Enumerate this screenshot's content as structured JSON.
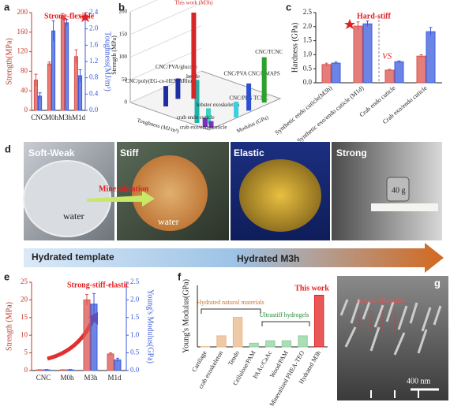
{
  "chart_data": [
    {
      "panel": "a",
      "type": "bar",
      "annotation": "Strong-flexible",
      "y_label": "Strength(MPa)",
      "y2_label": "Toughness(MJ/m³)",
      "categories": [
        "CNC",
        "M0h",
        "M3h",
        "M1d"
      ],
      "ylim": [
        0,
        200
      ],
      "yticks": [
        0,
        40,
        80,
        120,
        160,
        200
      ],
      "y2lim": [
        0,
        2.4
      ],
      "y2ticks": [
        {
          "value": 0,
          "label": "0.0"
        },
        {
          "value": 0.4,
          "label": "0.4"
        },
        {
          "value": 0.8,
          "label": "0.8"
        },
        {
          "value": 1.2,
          "label": "1.2"
        },
        {
          "value": 1.6,
          "label": "1.6"
        },
        {
          "value": 2.0,
          "label": "2.0"
        },
        {
          "value": 2.4,
          "label": "2.4"
        }
      ],
      "series": [
        {
          "color": "#d9534f",
          "values": [
            62,
            95,
            192,
            110
          ],
          "errors": [
            12,
            4,
            6,
            14
          ]
        },
        {
          "color": "#3b5bdb",
          "axis": "y2",
          "values": [
            0.35,
            1.95,
            2.15,
            0.85
          ],
          "errors": [
            0.08,
            0.25,
            0.08,
            0.15
          ]
        }
      ]
    },
    {
      "panel": "b",
      "type": "bar3d",
      "x_label": "Toughness (MJ/m³)",
      "y_label": "Modulus (GPa)",
      "z_label": "Strength (MPa)",
      "xlim": [
        0,
        10
      ],
      "ylim": [
        0,
        10
      ],
      "zlim": [
        0,
        200
      ],
      "zticks": [
        0,
        50,
        100,
        150,
        200
      ],
      "points": [
        {
          "name": "CNC/poly(EG-co-HEMARho)",
          "toughness": 6.85,
          "modulus": 1.5,
          "strength": 45,
          "color": "#1f2f9f"
        },
        {
          "name": "CNC/PVA/glucose",
          "toughness": 7.2,
          "modulus": 3.6,
          "strength": 45,
          "color": "#1f2f9f"
        },
        {
          "name": "beetle",
          "toughness": 2.0,
          "modulus": 0.5,
          "strength": 95,
          "color": "#20b2aa"
        },
        {
          "name": "lobster exoskeleton",
          "toughness": 1.0,
          "modulus": 1.0,
          "strength": 35,
          "color": "#40d0c0"
        },
        {
          "name": "crab endo cuticle",
          "toughness": 0.8,
          "modulus": 0.3,
          "strength": 20,
          "color": "#7b2fbe"
        },
        {
          "name": "crab exo/endo cuticle",
          "toughness": 0.2,
          "modulus": 0.5,
          "strength": 15,
          "color": "#7b2fbe"
        },
        {
          "name": "CNC/PPG TCNC",
          "toughness": 0.1,
          "modulus": 3.9,
          "strength": 35,
          "color": "#3ad0e0"
        },
        {
          "name": "CNC/PVA CNC/DMAPS",
          "toughness": 0.3,
          "modulus": 5.9,
          "strength": 60,
          "color": "#2a4fd0"
        },
        {
          "name": "CNC/TCNC",
          "toughness": 0.5,
          "modulus": 8.3,
          "strength": 100,
          "color": "#2ca02c"
        },
        {
          "name": "This work (M3h)",
          "toughness": 6.1,
          "modulus": 4.6,
          "strength": 190,
          "color": "#d62728"
        }
      ]
    },
    {
      "panel": "c",
      "type": "bar",
      "annotation": "Hard-stiff",
      "divider_label": "VS",
      "y_label": "Hardness (GPa)",
      "categories": [
        "Synthetic endo cuticle(M3h)",
        "Synthetic exo/endo cuticle (M1d)",
        "Crab endo cuticle",
        "Crab exo/endo cuticle"
      ],
      "ylim": [
        0,
        2.5
      ],
      "yticks": [
        {
          "value": 0,
          "label": "0.0"
        },
        {
          "value": 0.5,
          "label": "0.5"
        },
        {
          "value": 1.0,
          "label": "1.0"
        },
        {
          "value": 1.5,
          "label": "1.5"
        },
        {
          "value": 2.0,
          "label": "2.0"
        },
        {
          "value": 2.5,
          "label": "2.5"
        }
      ],
      "series": [
        {
          "color": "#d9534f",
          "values": [
            0.65,
            2.02,
            0.45,
            0.95
          ],
          "errors": [
            0.05,
            0.15,
            0.03,
            0.05
          ]
        },
        {
          "color": "#3b5bdb",
          "values": [
            0.7,
            2.1,
            0.75,
            1.82
          ],
          "errors": [
            0.04,
            0.1,
            0.03,
            0.15
          ]
        }
      ]
    },
    {
      "panel": "e",
      "type": "bar",
      "annotation": "Strong-stiff-elastic",
      "y_label": "Strength (MPa)",
      "y2_label": "Young's Modulus(GPa)",
      "categories": [
        "CNC",
        "M0h",
        "M3h",
        "M1d"
      ],
      "ylim": [
        0,
        25
      ],
      "yticks": [
        0,
        5,
        10,
        15,
        20,
        25
      ],
      "y2lim": [
        0,
        2.5
      ],
      "y2ticks": [
        {
          "value": 0,
          "label": "0.0"
        },
        {
          "value": 0.5,
          "label": "0.5"
        },
        {
          "value": 1.0,
          "label": "1.0"
        },
        {
          "value": 1.5,
          "label": "1.5"
        },
        {
          "value": 2.0,
          "label": "2.0"
        },
        {
          "value": 2.5,
          "label": "2.5"
        }
      ],
      "series": [
        {
          "color": "#d9534f",
          "values": [
            0.2,
            0.2,
            20,
            4.7
          ],
          "errors": [
            0.05,
            0.05,
            1.5,
            0.3
          ]
        },
        {
          "color": "#3b5bdb",
          "axis": "y2",
          "values": [
            0.02,
            0.02,
            1.88,
            0.3
          ],
          "errors": [
            0.01,
            0.01,
            0.3,
            0.05
          ]
        }
      ]
    },
    {
      "panel": "f",
      "type": "bar",
      "y_label": "Young's Modulus(GPa)",
      "annotations": [
        "Hydrated natural materials",
        "Ultrastiff hydrogels",
        "This work"
      ],
      "categories": [
        "Cartilage",
        "crab exoskeleton",
        "Tendo",
        "Cellulose/PAM",
        "PAAc/CaAc",
        "Wood/PAM",
        "Mineralized PHEA-TEO",
        "Hydrated M3h"
      ],
      "ylim": [
        0,
        2.5
      ],
      "values": [
        0.01,
        0.45,
        1.2,
        0.15,
        0.25,
        0.25,
        0.45,
        2.1
      ],
      "colors": [
        "#e8b88a",
        "#e8b88a",
        "#e8b88a",
        "#8fd19e",
        "#8fd19e",
        "#8fd19e",
        "#8fd19e",
        "#e02020"
      ]
    }
  ],
  "panel_d": {
    "label": "d",
    "captions": [
      "Soft-Weak",
      "Stiff",
      "Elastic",
      "Strong"
    ],
    "notes": [
      "water",
      "water",
      "Mineralization",
      "40 g"
    ],
    "stages": [
      "Hydrated template",
      "Hydrated M3h"
    ]
  },
  "panel_g": {
    "label": "g",
    "annotation": "Tension direction",
    "scale_bar": "400 nm"
  }
}
